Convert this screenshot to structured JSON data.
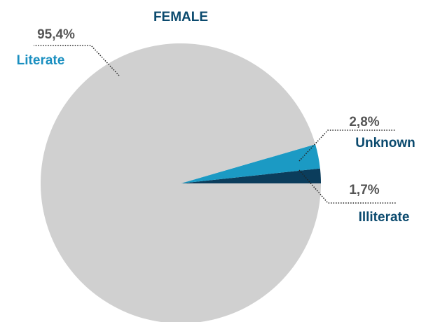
{
  "chart_data": {
    "type": "pie",
    "title": "FEMALE",
    "categories": [
      "Literate",
      "Unknown",
      "Illiterate"
    ],
    "values": [
      95.4,
      2.8,
      1.7
    ],
    "value_labels": [
      "95,4%",
      "2,8%",
      "1,7%"
    ],
    "colors": [
      "#d0d0d0",
      "#1b9ac4",
      "#0b3d5c"
    ]
  }
}
